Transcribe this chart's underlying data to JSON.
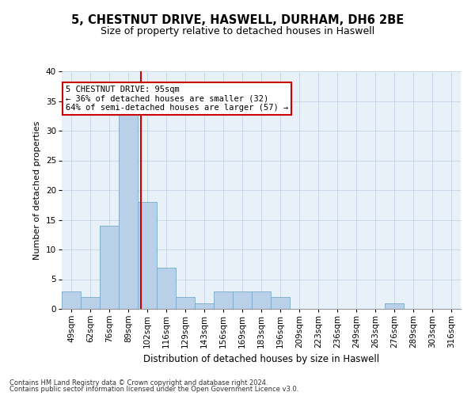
{
  "title_line1": "5, CHESTNUT DRIVE, HASWELL, DURHAM, DH6 2BE",
  "title_line2": "Size of property relative to detached houses in Haswell",
  "xlabel": "Distribution of detached houses by size in Haswell",
  "ylabel": "Number of detached properties",
  "footer_line1": "Contains HM Land Registry data © Crown copyright and database right 2024.",
  "footer_line2": "Contains public sector information licensed under the Open Government Licence v3.0.",
  "categories": [
    "49sqm",
    "62sqm",
    "76sqm",
    "89sqm",
    "102sqm",
    "116sqm",
    "129sqm",
    "143sqm",
    "156sqm",
    "169sqm",
    "183sqm",
    "196sqm",
    "209sqm",
    "223sqm",
    "236sqm",
    "249sqm",
    "263sqm",
    "276sqm",
    "289sqm",
    "303sqm",
    "316sqm"
  ],
  "values": [
    3,
    2,
    14,
    33,
    18,
    7,
    2,
    1,
    3,
    3,
    3,
    2,
    0,
    0,
    0,
    0,
    0,
    1,
    0,
    0,
    0
  ],
  "bar_color": "#b8d0e8",
  "bar_edge_color": "#7aaac8",
  "property_label": "5 CHESTNUT DRIVE: 95sqm",
  "annotation_line1": "← 36% of detached houses are smaller (32)",
  "annotation_line2": "64% of semi-detached houses are larger (57) →",
  "vline_color": "#cc0000",
  "vline_position": 3.65,
  "ylim": [
    0,
    40
  ],
  "yticks": [
    0,
    5,
    10,
    15,
    20,
    25,
    30,
    35,
    40
  ],
  "annotation_box_color": "#ffffff",
  "annotation_box_edge": "#cc0000",
  "grid_color": "#c8d8e8",
  "bg_color": "#e8f0f8",
  "title1_fontsize": 10.5,
  "title2_fontsize": 9,
  "ylabel_fontsize": 8,
  "xlabel_fontsize": 8.5,
  "tick_fontsize": 7.5,
  "annot_fontsize": 7.5
}
